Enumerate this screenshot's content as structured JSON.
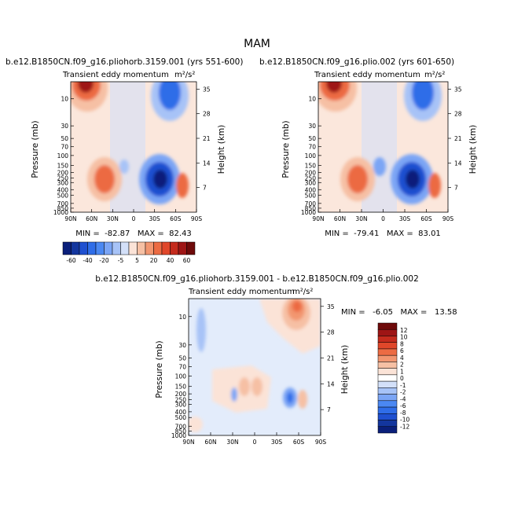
{
  "page": {
    "season_title": "MAM",
    "colors": {
      "blues": [
        "#0a1f7a",
        "#13369e",
        "#1f50d0",
        "#2f6de8",
        "#4b88f2",
        "#7ba5f5",
        "#a7c3f7",
        "#d3e0f9"
      ],
      "reds": [
        "#fbe3d7",
        "#f6c0a4",
        "#f29670",
        "#ec6b43",
        "#e0472a",
        "#c42b1d",
        "#9e1515",
        "#6e0a0a"
      ],
      "background_fill": "#fbe7dc"
    }
  },
  "chart_data": [
    {
      "id": "panel-1",
      "type": "contour",
      "title": "b.e12.B1850CN.f09_g16.pliohorb.3159.001 (yrs 551-600)",
      "subtitle_left": "Transient eddy momentum",
      "subtitle_right": "m²/s²",
      "ylabel": "Pressure  (mb)",
      "ylabel_right": "Height  (km)",
      "xticks": [
        "90N",
        "60N",
        "30N",
        "0",
        "30S",
        "60S",
        "90S"
      ],
      "x_values": [
        90,
        60,
        30,
        0,
        -30,
        -60,
        -90
      ],
      "yticks": [
        "10",
        "30",
        "50",
        "70",
        "100",
        "150",
        "200",
        "250",
        "300",
        "400",
        "500",
        "700",
        "850",
        "1000"
      ],
      "ylim": [
        1000,
        5
      ],
      "height_ticks": [
        "35",
        "28",
        "21",
        "14",
        "7"
      ],
      "stats": "MIN =  -82.87   MAX =  82.43",
      "min": -82.87,
      "max": 82.43,
      "features": [
        {
          "lat": 58,
          "p": 7,
          "value": 82,
          "sign": "positive"
        },
        {
          "lat": 27,
          "p": 230,
          "value": 55,
          "sign": "positive"
        },
        {
          "lat": -70,
          "p": 290,
          "value": 30,
          "sign": "positive"
        },
        {
          "lat": -40,
          "p": 280,
          "value": -82,
          "sign": "negative"
        },
        {
          "lat": -55,
          "p": 12,
          "value": -50,
          "sign": "negative"
        },
        {
          "lat": 5,
          "p": 150,
          "value": -8,
          "sign": "negative"
        }
      ]
    },
    {
      "id": "panel-2",
      "type": "contour",
      "title": "b.e12.B1850CN.f09_g16.plio.002 (yrs 601-650)",
      "subtitle_left": "Transient eddy momentum",
      "subtitle_right": "m²/s²",
      "ylabel": "Pressure  (mb)",
      "ylabel_right": "Height  (km)",
      "xticks": [
        "90N",
        "60N",
        "30N",
        "0",
        "30S",
        "60S",
        "90S"
      ],
      "x_values": [
        90,
        60,
        30,
        0,
        -30,
        -60,
        -90
      ],
      "yticks": [
        "10",
        "30",
        "50",
        "70",
        "100",
        "150",
        "200",
        "250",
        "300",
        "400",
        "500",
        "700",
        "850",
        "1000"
      ],
      "ylim": [
        1000,
        5
      ],
      "height_ticks": [
        "35",
        "28",
        "21",
        "14",
        "7"
      ],
      "stats": "MIN =  -79.41   MAX =  83.01",
      "min": -79.41,
      "max": 83.01,
      "features": [
        {
          "lat": 58,
          "p": 7,
          "value": 83,
          "sign": "positive"
        },
        {
          "lat": 28,
          "p": 220,
          "value": 50,
          "sign": "positive"
        },
        {
          "lat": -70,
          "p": 290,
          "value": 30,
          "sign": "positive"
        },
        {
          "lat": -40,
          "p": 270,
          "value": -79,
          "sign": "negative"
        },
        {
          "lat": -55,
          "p": 12,
          "value": -55,
          "sign": "negative"
        },
        {
          "lat": 5,
          "p": 150,
          "value": -20,
          "sign": "negative"
        }
      ]
    },
    {
      "id": "panel-diff",
      "type": "contour",
      "title": "b.e12.B1850CN.f09_g16.pliohorb.3159.001 - b.e12.B1850CN.f09_g16.plio.002",
      "subtitle_left": "Transient eddy momentum",
      "subtitle_right": "m²/s²",
      "ylabel": "Pressure  (mb)",
      "ylabel_right": "Height  (km)",
      "xticks": [
        "90N",
        "60N",
        "30N",
        "0",
        "30S",
        "60S",
        "90S"
      ],
      "x_values": [
        90,
        60,
        30,
        0,
        -30,
        -60,
        -90
      ],
      "yticks": [
        "10",
        "30",
        "50",
        "70",
        "100",
        "150",
        "200",
        "250",
        "300",
        "400",
        "500",
        "700",
        "850",
        "1000"
      ],
      "ylim": [
        1000,
        5
      ],
      "height_ticks": [
        "35",
        "28",
        "21",
        "14",
        "7"
      ],
      "stats": "MIN =   -6.05   MAX =   13.58",
      "min": -6.05,
      "max": 13.58,
      "features": [
        {
          "lat": -50,
          "p": 8,
          "value": 8,
          "sign": "positive"
        },
        {
          "lat": 10,
          "p": 130,
          "value": 4,
          "sign": "positive"
        },
        {
          "lat": -8,
          "p": 130,
          "value": 3,
          "sign": "positive"
        },
        {
          "lat": 45,
          "p": 150,
          "value": 2,
          "sign": "positive"
        },
        {
          "lat": -37,
          "p": 230,
          "value": -6,
          "sign": "negative"
        },
        {
          "lat": 28,
          "p": 250,
          "value": -3,
          "sign": "negative"
        },
        {
          "lat": 78,
          "p": 30,
          "value": -1.5,
          "sign": "negative"
        },
        {
          "lat": -60,
          "p": 200,
          "value": 2,
          "sign": "positive"
        }
      ]
    }
  ],
  "colorbar_top": {
    "labels": [
      "-60",
      "-40",
      "-20",
      "-5",
      "5",
      "20",
      "40",
      "60"
    ],
    "levels": [
      -60,
      -40,
      -20,
      -5,
      5,
      20,
      40,
      60
    ]
  },
  "colorbar_diff": {
    "labels": [
      "12",
      "10",
      "8",
      "6",
      "4",
      "2",
      "1",
      "0",
      "-1",
      "-2",
      "-4",
      "-6",
      "-8",
      "-10",
      "-12"
    ],
    "levels": [
      12,
      10,
      8,
      6,
      4,
      2,
      1,
      0,
      -1,
      -2,
      -4,
      -6,
      -8,
      -10,
      -12
    ]
  }
}
